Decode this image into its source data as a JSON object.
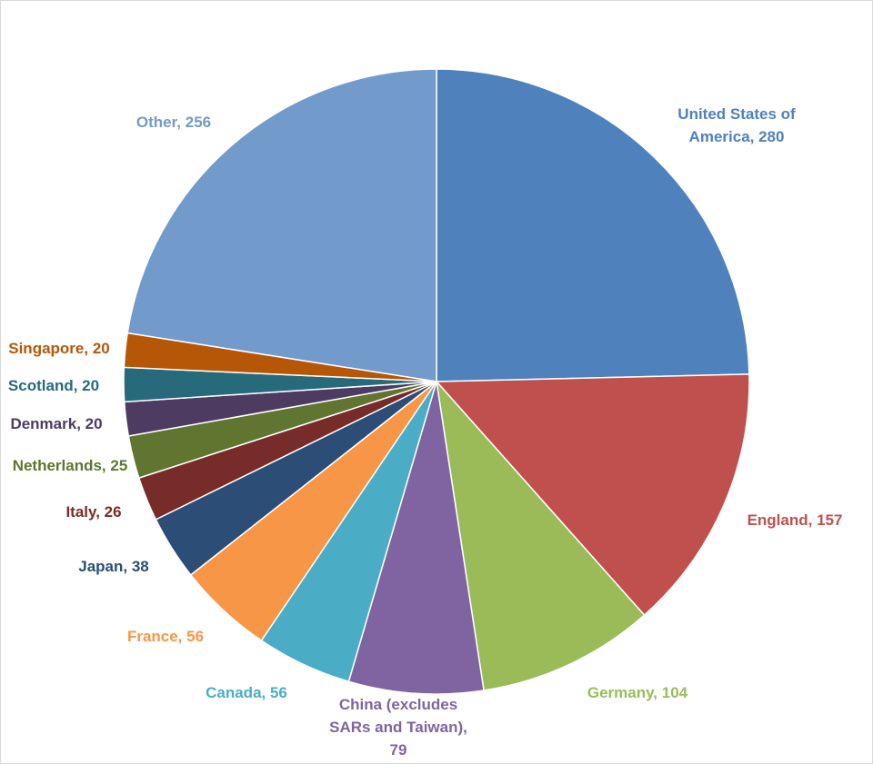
{
  "chart_data": {
    "type": "pie",
    "title": "",
    "start_angle_deg": 0,
    "direction": "clockwise",
    "slices": [
      {
        "label": "United States of America",
        "value": 280,
        "color": "#4F81BD",
        "label_lines": [
          "United States of",
          "America, 280"
        ]
      },
      {
        "label": "England",
        "value": 157,
        "color": "#C0504D",
        "label_lines": [
          "England, 157"
        ]
      },
      {
        "label": "Germany",
        "value": 104,
        "color": "#9BBB59",
        "label_lines": [
          "Germany, 104"
        ]
      },
      {
        "label": "China (excludes SARs and Taiwan)",
        "value": 79,
        "color": "#8064A2",
        "label_lines": [
          "China (excludes",
          "SARs and Taiwan),",
          "79"
        ]
      },
      {
        "label": "Canada",
        "value": 56,
        "color": "#4BACC6",
        "label_lines": [
          "Canada, 56"
        ]
      },
      {
        "label": "France",
        "value": 56,
        "color": "#F79646",
        "label_lines": [
          "France, 56"
        ]
      },
      {
        "label": "Japan",
        "value": 38,
        "color": "#2C4D75",
        "label_lines": [
          "Japan, 38"
        ]
      },
      {
        "label": "Italy",
        "value": 26,
        "color": "#772C2A",
        "label_lines": [
          "Italy, 26"
        ]
      },
      {
        "label": "Netherlands",
        "value": 25,
        "color": "#5F7530",
        "label_lines": [
          "Netherlands, 25"
        ]
      },
      {
        "label": "Denmark",
        "value": 20,
        "color": "#4D3B62",
        "label_lines": [
          "Denmark, 20"
        ]
      },
      {
        "label": "Scotland",
        "value": 20,
        "color": "#276A7C",
        "label_lines": [
          "Scotland, 20"
        ]
      },
      {
        "label": "Singapore",
        "value": 20,
        "color": "#B65708",
        "label_lines": [
          "Singapore, 20"
        ]
      },
      {
        "label": "Other",
        "value": 256,
        "color": "#729ACA",
        "label_lines": [
          "Other, 256"
        ]
      }
    ]
  }
}
